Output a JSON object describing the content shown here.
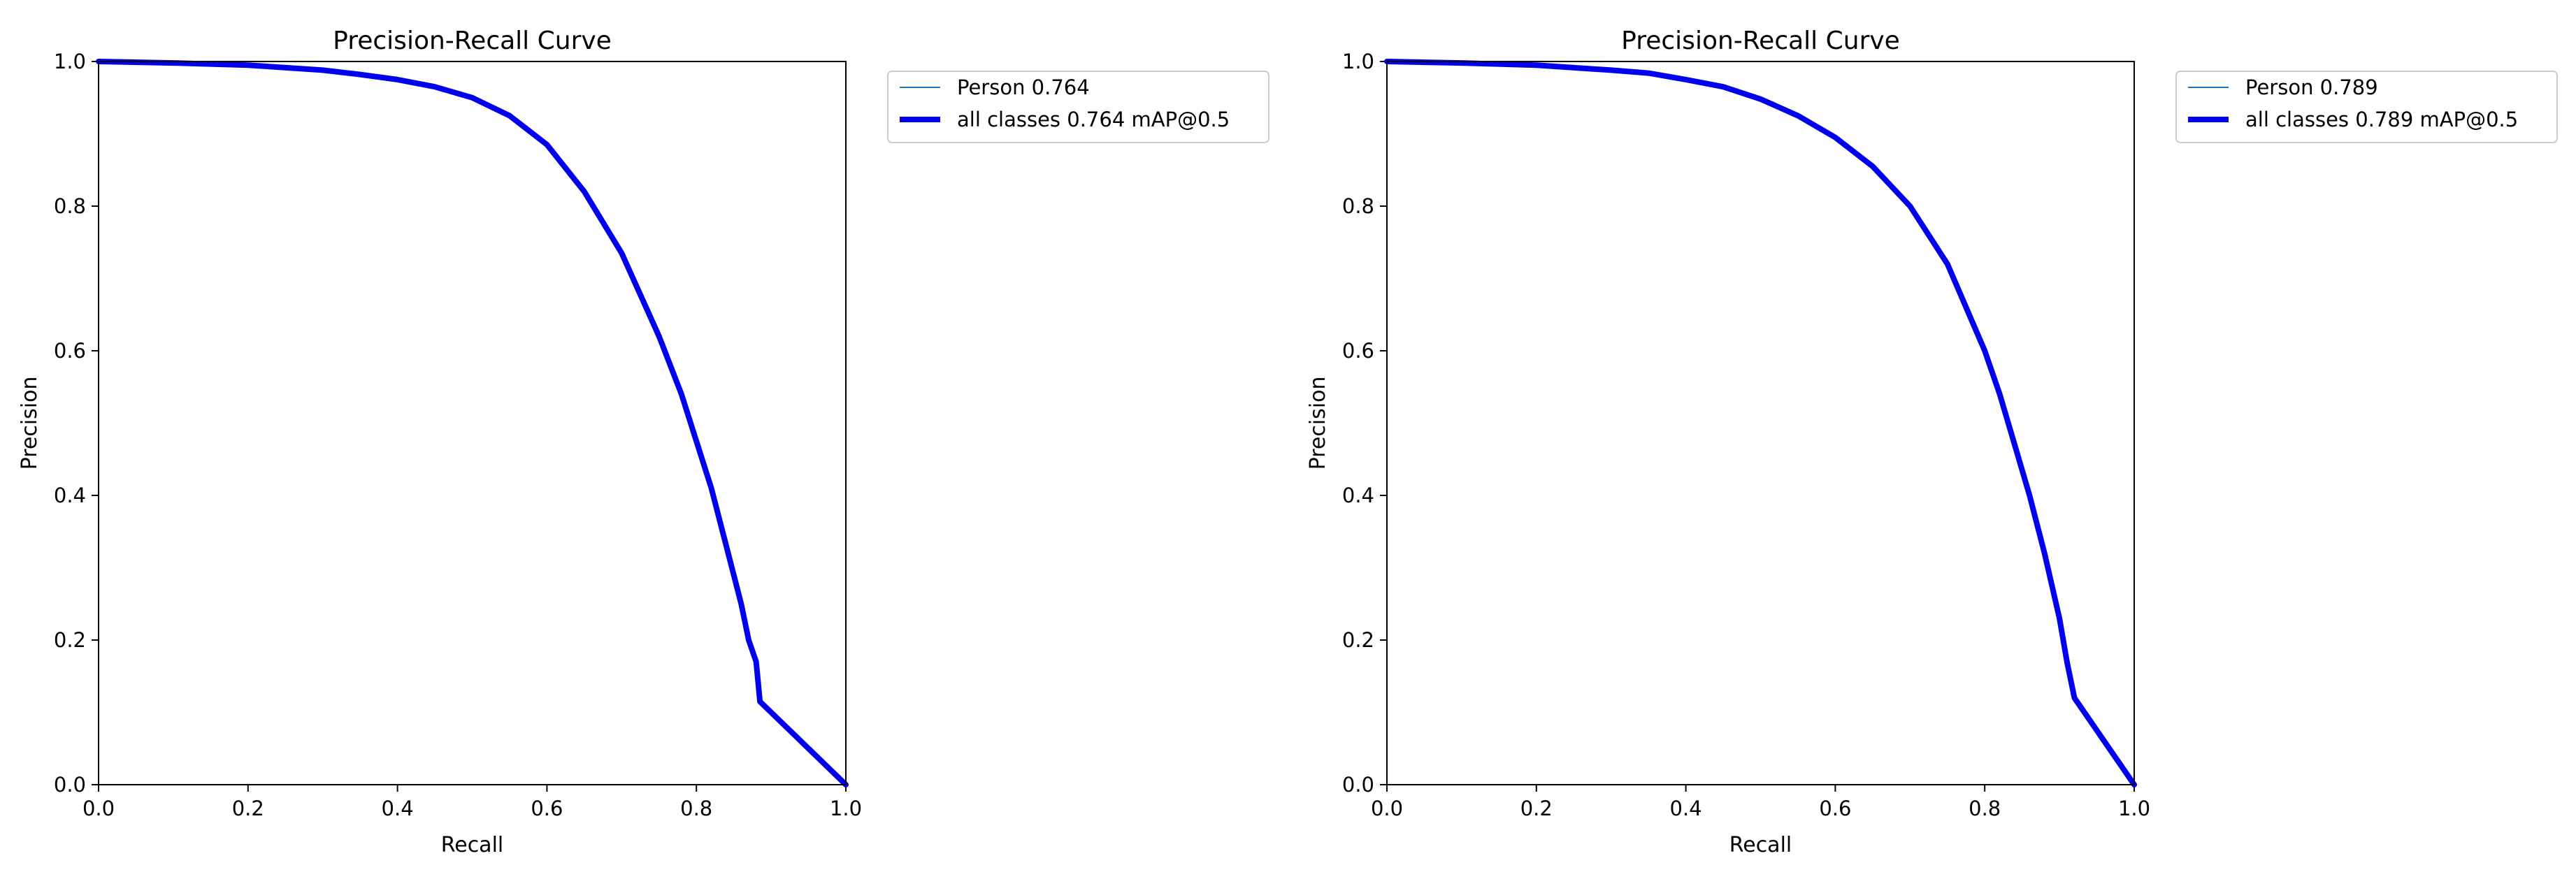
{
  "chart_data": [
    {
      "type": "line",
      "title": "Precision-Recall Curve",
      "xlabel": "Recall",
      "ylabel": "Precision",
      "xlim": [
        0,
        1
      ],
      "ylim": [
        0,
        1
      ],
      "xticks": [
        "0.0",
        "0.2",
        "0.4",
        "0.6",
        "0.8",
        "1.0"
      ],
      "yticks": [
        "0.0",
        "0.2",
        "0.4",
        "0.6",
        "0.8",
        "1.0"
      ],
      "grid": false,
      "legend_position": "outside-top-right",
      "series": [
        {
          "name": "Person 0.764",
          "color": "#1f77b4",
          "line_style": "thin",
          "x": [
            0.0,
            0.1,
            0.2,
            0.3,
            0.35,
            0.4,
            0.45,
            0.5,
            0.55,
            0.6,
            0.65,
            0.7,
            0.75,
            0.78,
            0.8,
            0.82,
            0.84,
            0.86,
            0.87,
            0.88,
            0.885,
            1.0
          ],
          "y": [
            1.0,
            0.998,
            0.995,
            0.988,
            0.982,
            0.975,
            0.965,
            0.95,
            0.925,
            0.885,
            0.82,
            0.735,
            0.62,
            0.54,
            0.475,
            0.41,
            0.33,
            0.25,
            0.2,
            0.17,
            0.115,
            0.0
          ]
        },
        {
          "name": "all classes 0.764 mAP@0.5",
          "color": "#0000ee",
          "line_style": "thick",
          "x": [
            0.0,
            0.1,
            0.2,
            0.3,
            0.35,
            0.4,
            0.45,
            0.5,
            0.55,
            0.6,
            0.65,
            0.7,
            0.75,
            0.78,
            0.8,
            0.82,
            0.84,
            0.86,
            0.87,
            0.88,
            0.885,
            1.0
          ],
          "y": [
            1.0,
            0.998,
            0.995,
            0.988,
            0.982,
            0.975,
            0.965,
            0.95,
            0.925,
            0.885,
            0.82,
            0.735,
            0.62,
            0.54,
            0.475,
            0.41,
            0.33,
            0.25,
            0.2,
            0.17,
            0.115,
            0.0
          ]
        }
      ]
    },
    {
      "type": "line",
      "title": "Precision-Recall Curve",
      "xlabel": "Recall",
      "ylabel": "Precision",
      "xlim": [
        0,
        1
      ],
      "ylim": [
        0,
        1
      ],
      "xticks": [
        "0.0",
        "0.2",
        "0.4",
        "0.6",
        "0.8",
        "1.0"
      ],
      "yticks": [
        "0.0",
        "0.2",
        "0.4",
        "0.6",
        "0.8",
        "1.0"
      ],
      "grid": false,
      "legend_position": "outside-top-right",
      "series": [
        {
          "name": "Person 0.789",
          "color": "#1f77b4",
          "line_style": "thin",
          "x": [
            0.0,
            0.1,
            0.2,
            0.3,
            0.35,
            0.4,
            0.45,
            0.5,
            0.55,
            0.6,
            0.65,
            0.7,
            0.75,
            0.8,
            0.82,
            0.84,
            0.86,
            0.88,
            0.9,
            0.91,
            0.92,
            1.0
          ],
          "y": [
            1.0,
            0.998,
            0.995,
            0.988,
            0.984,
            0.975,
            0.965,
            0.948,
            0.925,
            0.895,
            0.855,
            0.8,
            0.72,
            0.6,
            0.54,
            0.47,
            0.4,
            0.32,
            0.23,
            0.17,
            0.12,
            0.0
          ]
        },
        {
          "name": "all classes 0.789 mAP@0.5",
          "color": "#0000ee",
          "line_style": "thick",
          "x": [
            0.0,
            0.1,
            0.2,
            0.3,
            0.35,
            0.4,
            0.45,
            0.5,
            0.55,
            0.6,
            0.65,
            0.7,
            0.75,
            0.8,
            0.82,
            0.84,
            0.86,
            0.88,
            0.9,
            0.91,
            0.92,
            1.0
          ],
          "y": [
            1.0,
            0.998,
            0.995,
            0.988,
            0.984,
            0.975,
            0.965,
            0.948,
            0.925,
            0.895,
            0.855,
            0.8,
            0.72,
            0.6,
            0.54,
            0.47,
            0.4,
            0.32,
            0.23,
            0.17,
            0.12,
            0.0
          ]
        }
      ]
    }
  ]
}
